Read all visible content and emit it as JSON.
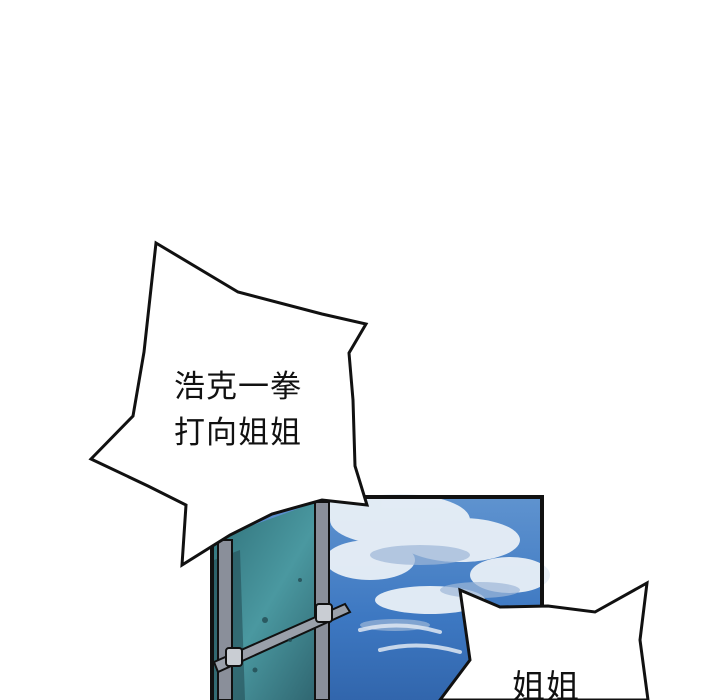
{
  "panels": {
    "sky_panel": {
      "sky_color": "#3d78c2",
      "cloud_color": "#e6eef6",
      "border_color": "#111111"
    },
    "glass_panel": {
      "glass_color": "#3f8a92",
      "pipe_color": "#8a8f9a"
    }
  },
  "bubbles": {
    "main": {
      "lines": [
        "浩克一拳",
        "打向姐姐"
      ]
    },
    "secondary": {
      "text": "姐姐"
    }
  }
}
